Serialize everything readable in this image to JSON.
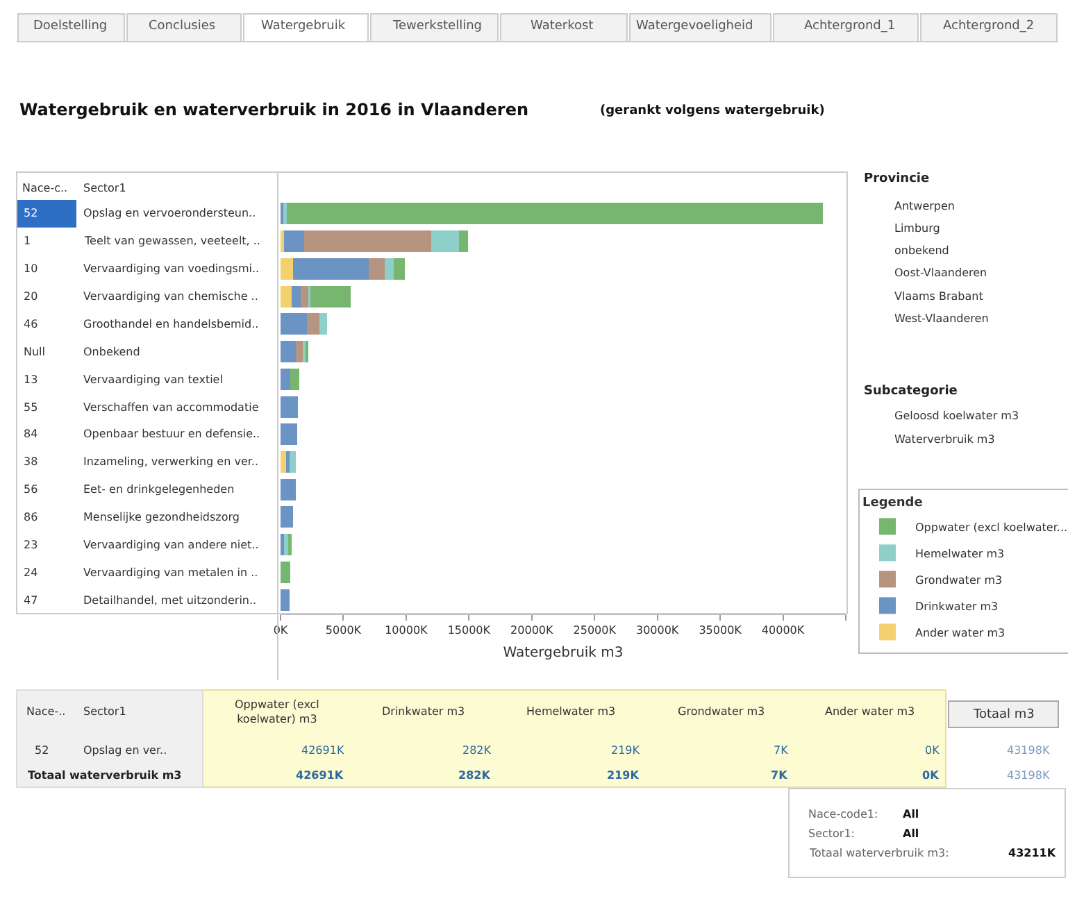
{
  "chart_data": {
    "type": "bar",
    "orientation": "horizontal",
    "stacked": true,
    "title": "Watergebruik en waterverbruik in 2016 in Vlaanderen",
    "subtitle": "(gerankt volgens watergebruik)",
    "xlabel": "Watergebruik m3",
    "legend_title": "Legende",
    "legend": "right",
    "categories": [
      "Opslag en vervoerondersteun..",
      "Teelt van gewassen, veeteelt, ..",
      "Vervaardiging van voedingsmi..",
      "Vervaardiging van chemische ..",
      "Groothandel en handelsbemid..",
      "Onbekend",
      "Vervaardiging van textiel",
      "Verschaffen van accommodatie",
      "Openbaar bestuur en defensie..",
      "Inzameling, verwerking en ver..",
      "Eet- en drinkgelegenheden",
      "Menselijke gezondheidszorg",
      "Vervaardiging van andere niet..",
      "Vervaardiging van metalen in ..",
      "Detailhandel, met uitzonderin.."
    ],
    "y2_categories": [
      "52",
      "1",
      "10",
      "20",
      "46",
      "Null",
      "13",
      "55",
      "84",
      "38",
      "56",
      "86",
      "23",
      "24",
      "47"
    ],
    "xlim": [
      0,
      45000
    ],
    "xticks": [
      {
        "value": 0,
        "label": "0K"
      },
      {
        "value": 5000,
        "label": "5000K"
      },
      {
        "value": 10000,
        "label": "10000K"
      },
      {
        "value": 15000,
        "label": "15000K"
      },
      {
        "value": 20000,
        "label": "20000K"
      },
      {
        "value": 25000,
        "label": "25000K"
      },
      {
        "value": 30000,
        "label": "30000K"
      },
      {
        "value": 35000,
        "label": "35000K"
      },
      {
        "value": 40000,
        "label": "40000K"
      },
      {
        "value": 45000,
        "label": null
      }
    ],
    "series": [
      {
        "name": "Ander water m3",
        "color": "#f4d06f",
        "values": [
          0,
          300,
          1000,
          900,
          0,
          0,
          0,
          0,
          0,
          500,
          0,
          0,
          0,
          0,
          0
        ]
      },
      {
        "name": "Drinkwater m3",
        "color": "#6b93c4",
        "values": [
          300,
          1600,
          6000,
          700,
          2100,
          1200,
          800,
          1400,
          1300,
          200,
          1200,
          1000,
          300,
          0,
          700
        ]
      },
      {
        "name": "Grondwater m3",
        "color": "#b59580",
        "values": [
          0,
          10100,
          1300,
          700,
          1000,
          600,
          0,
          0,
          0,
          0,
          0,
          0,
          0,
          0,
          0
        ]
      },
      {
        "name": "Hemelwater m3",
        "color": "#8ecfc9",
        "values": [
          200,
          2200,
          700,
          100,
          600,
          200,
          0,
          0,
          0,
          500,
          0,
          0,
          300,
          0,
          0
        ]
      },
      {
        "name": "Oppwater (excl koelwater...",
        "color": "#76b66e",
        "values": [
          42700,
          700,
          900,
          3200,
          0,
          200,
          700,
          0,
          0,
          0,
          0,
          0,
          300,
          800,
          0
        ]
      }
    ],
    "annotations": [
      "Doelstelling",
      "Conclusies",
      "Watergebruik",
      "Tewerkstelling",
      "Waterkost",
      "Watergevoeligheid",
      "Achtergrond_1",
      "Achtergrond_2",
      "Nace-c..",
      "Sector1",
      "Provincie",
      "Antwerpen",
      "Limburg",
      "onbekend",
      "Oost-Vlaanderen",
      "Vlaams Brabant",
      "West-Vlaanderen",
      "Subcategorie",
      "Geloosd koelwater m3",
      "Waterverbruik m3",
      "Nace-..",
      "Sector1",
      "Oppwater (excl\nkoelwater) m3",
      "Drinkwater m3",
      "Hemelwater m3",
      "Grondwater m3",
      "Ander water m3",
      "Totaal m3",
      "52",
      "Opslag en ver..",
      "42691K",
      "282K",
      "219K",
      "7K",
      "0K",
      "43198K",
      "Totaal waterverbruik m3",
      "42691K",
      "282K",
      "219K",
      "7K",
      "0K",
      "43198K",
      "Nace-code1:",
      "All",
      "Sector1:",
      "All",
      "Totaal waterverbruik m3:",
      "43211K"
    ]
  }
}
